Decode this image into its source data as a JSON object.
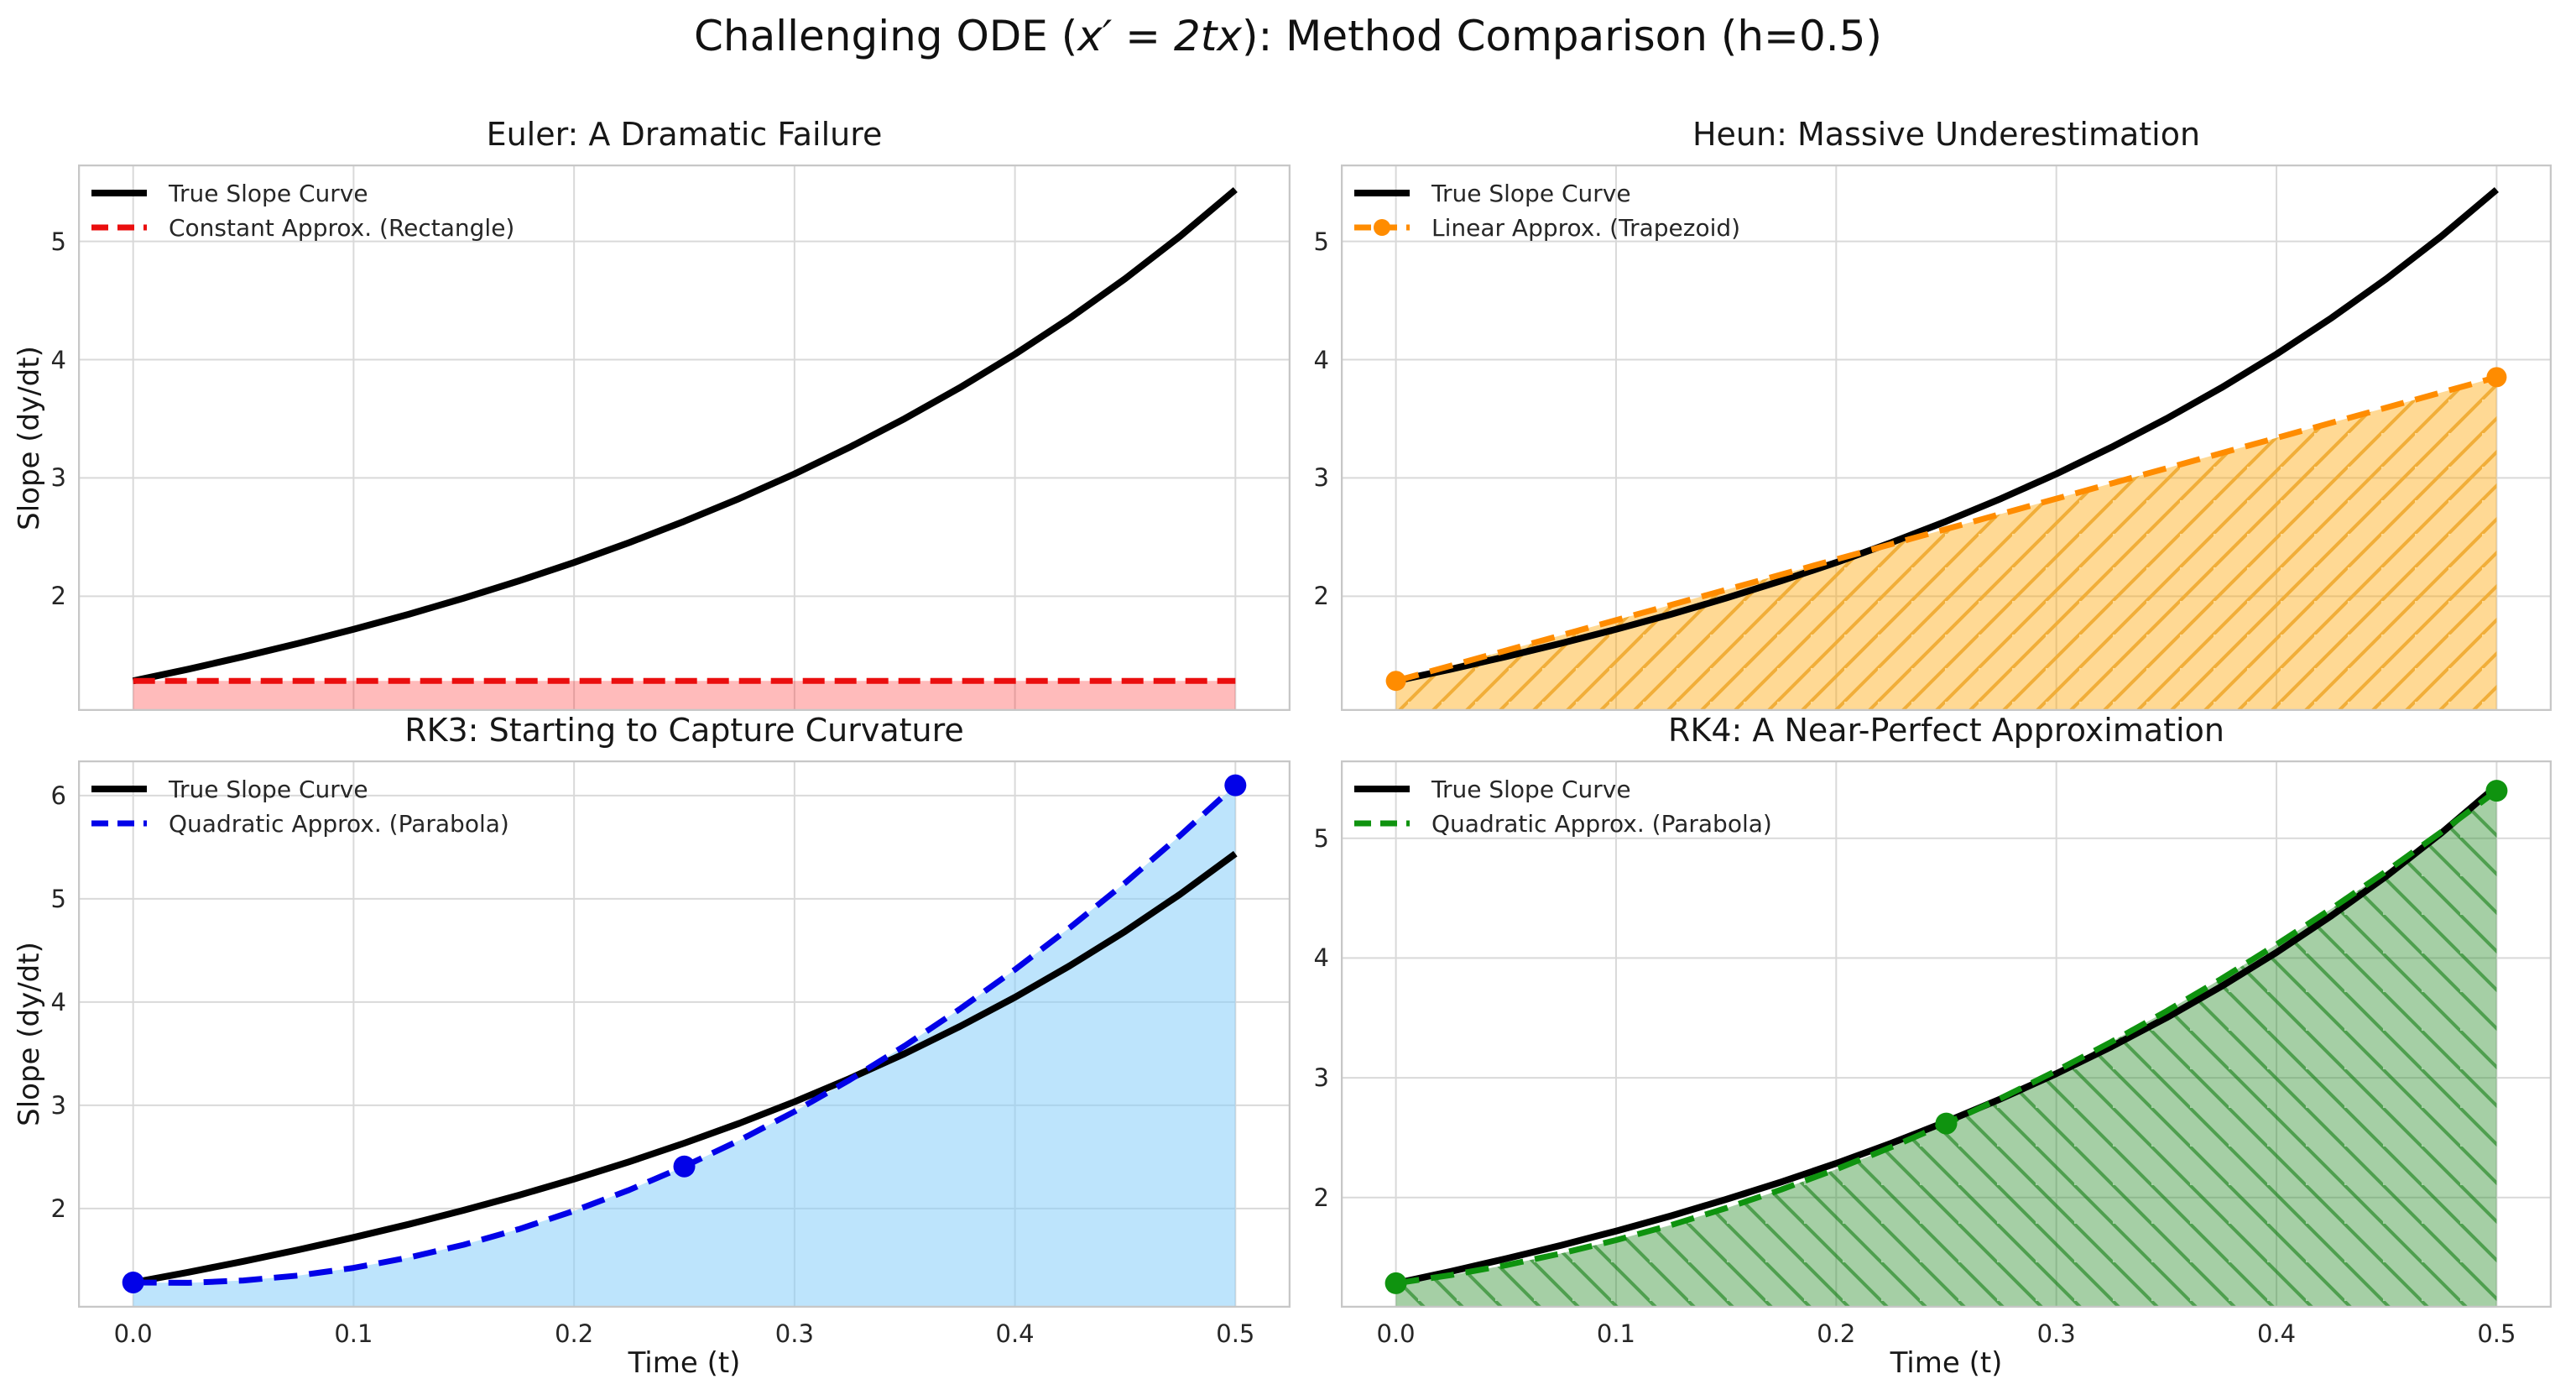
{
  "figure": {
    "title": {
      "prefix": "Challenging ODE (",
      "math": "x′ = 2tx",
      "suffix": "): Method Comparison (h=0.5)",
      "full": "Challenging ODE (x′ = 2tx): Method Comparison (h=0.5)"
    }
  },
  "shared": {
    "xlabel": "Time (t)",
    "ylabel": "Slope (dy/dt)"
  },
  "style": {
    "grid_color": "#d9d9d9",
    "spine_color": "#c7c7c7",
    "background": "#ffffff",
    "true_curve_color": "#000000",
    "euler_color": "#ea0e0e",
    "heun_color": "#ff8c00",
    "rk3_color": "#0202e8",
    "rk4_color": "#0f930f"
  },
  "chart_data": [
    {
      "id": "euler",
      "type": "line",
      "title": "Euler: A Dramatic Failure",
      "xlabel": "",
      "ylabel": "Slope (dy/dt)",
      "xlim": [
        -0.025,
        0.525
      ],
      "ylim": [
        1.03,
        5.65
      ],
      "x_ticks": [
        0,
        0.1,
        0.2,
        0.3,
        0.4,
        0.5
      ],
      "x_tick_labels": [],
      "y_ticks": [
        2,
        3,
        4,
        5
      ],
      "grid": true,
      "legend_position": "upper left",
      "legend": [
        {
          "label": "True Slope Curve",
          "color": "#000000",
          "dash": false,
          "marker": false,
          "line_width": 8
        },
        {
          "label": "Constant Approx. (Rectangle)",
          "color": "#ea0e0e",
          "dash": true,
          "marker": false,
          "line_width": 7
        }
      ],
      "series": [
        {
          "name": "True Slope Curve",
          "color": "#000000",
          "line_style": "solid",
          "line_width": 8,
          "x": [
            0,
            0.025,
            0.05,
            0.075,
            0.1,
            0.125,
            0.15,
            0.175,
            0.2,
            0.225,
            0.25,
            0.275,
            0.3,
            0.325,
            0.35,
            0.375,
            0.4,
            0.425,
            0.45,
            0.475,
            0.5
          ],
          "y": [
            1.284,
            1.383,
            1.489,
            1.601,
            1.72,
            1.847,
            1.984,
            2.129,
            2.285,
            2.453,
            2.633,
            2.826,
            3.034,
            3.259,
            3.501,
            3.763,
            4.046,
            4.353,
            4.685,
            5.045,
            5.437
          ]
        },
        {
          "name": "Constant Approx. (Rectangle)",
          "color": "#ea0e0e",
          "line_style": "dashed",
          "line_width": 7,
          "dash_pattern": "26 12",
          "x": [
            0,
            0.5
          ],
          "y": [
            1.284,
            1.284
          ],
          "fill_color": "rgba(255,30,30,0.30)",
          "fill_hatch": null,
          "markers": []
        }
      ]
    },
    {
      "id": "heun",
      "type": "line",
      "title": "Heun: Massive Underestimation",
      "xlabel": "",
      "ylabel": "",
      "xlim": [
        -0.025,
        0.525
      ],
      "ylim": [
        1.03,
        5.65
      ],
      "x_ticks": [
        0,
        0.1,
        0.2,
        0.3,
        0.4,
        0.5
      ],
      "x_tick_labels": [],
      "y_ticks": [
        2,
        3,
        4,
        5
      ],
      "grid": true,
      "legend_position": "upper left",
      "legend": [
        {
          "label": "True Slope Curve",
          "color": "#000000",
          "dash": false,
          "marker": false,
          "line_width": 8
        },
        {
          "label": "Linear Approx. (Trapezoid)",
          "color": "#ff8c00",
          "dash": true,
          "marker": true,
          "line_width": 7
        }
      ],
      "series": [
        {
          "name": "True Slope Curve",
          "color": "#000000",
          "line_style": "solid",
          "line_width": 8,
          "x": [
            0,
            0.025,
            0.05,
            0.075,
            0.1,
            0.125,
            0.15,
            0.175,
            0.2,
            0.225,
            0.25,
            0.275,
            0.3,
            0.325,
            0.35,
            0.375,
            0.4,
            0.425,
            0.45,
            0.475,
            0.5
          ],
          "y": [
            1.284,
            1.383,
            1.489,
            1.601,
            1.72,
            1.847,
            1.984,
            2.129,
            2.285,
            2.453,
            2.633,
            2.826,
            3.034,
            3.259,
            3.501,
            3.763,
            4.046,
            4.353,
            4.685,
            5.045,
            5.437
          ]
        },
        {
          "name": "Linear Approx. (Trapezoid)",
          "color": "#ff8c00",
          "line_style": "dashed",
          "line_width": 7,
          "dash_pattern": "28 14",
          "x": [
            0,
            0.5
          ],
          "y": [
            1.284,
            3.852
          ],
          "fill_color": "rgba(255,165,0,0.42)",
          "fill_hatch": {
            "direction": "/",
            "color": "rgba(240,172,52,0.95)",
            "spacing": 40,
            "width": 4
          },
          "markers": [
            [
              0,
              1.284
            ],
            [
              0.5,
              3.852
            ]
          ],
          "marker_radius": 12
        }
      ]
    },
    {
      "id": "rk3",
      "type": "line",
      "title": "RK3: Starting to Capture Curvature",
      "xlabel": "Time (t)",
      "ylabel": "Slope (dy/dt)",
      "xlim": [
        -0.025,
        0.525
      ],
      "ylim": [
        1.04,
        6.34
      ],
      "x_ticks": [
        0,
        0.1,
        0.2,
        0.3,
        0.4,
        0.5
      ],
      "x_tick_labels": [
        "0.0",
        "0.1",
        "0.2",
        "0.3",
        "0.4",
        "0.5"
      ],
      "y_ticks": [
        2,
        3,
        4,
        5,
        6
      ],
      "grid": true,
      "legend_position": "upper left",
      "legend": [
        {
          "label": "True Slope Curve",
          "color": "#000000",
          "dash": false,
          "marker": false,
          "line_width": 8
        },
        {
          "label": "Quadratic Approx. (Parabola)",
          "color": "#0202e8",
          "dash": true,
          "marker": false,
          "line_width": 7
        }
      ],
      "series": [
        {
          "name": "True Slope Curve",
          "color": "#000000",
          "line_style": "solid",
          "line_width": 8,
          "x": [
            0,
            0.025,
            0.05,
            0.075,
            0.1,
            0.125,
            0.15,
            0.175,
            0.2,
            0.225,
            0.25,
            0.275,
            0.3,
            0.325,
            0.35,
            0.375,
            0.4,
            0.425,
            0.45,
            0.475,
            0.5
          ],
          "y": [
            1.284,
            1.383,
            1.489,
            1.601,
            1.72,
            1.847,
            1.984,
            2.129,
            2.285,
            2.453,
            2.633,
            2.826,
            3.034,
            3.259,
            3.501,
            3.763,
            4.046,
            4.353,
            4.685,
            5.045,
            5.437
          ]
        },
        {
          "name": "Quadratic Approx. (Parabola)",
          "color": "#0202e8",
          "line_style": "dashed",
          "line_width": 7,
          "dash_pattern": "28 14",
          "x": [
            0,
            0.025,
            0.05,
            0.075,
            0.1,
            0.125,
            0.15,
            0.175,
            0.2,
            0.225,
            0.25,
            0.275,
            0.3,
            0.325,
            0.35,
            0.375,
            0.4,
            0.425,
            0.45,
            0.475,
            0.5
          ],
          "y": [
            1.284,
            1.281,
            1.303,
            1.351,
            1.425,
            1.525,
            1.65,
            1.801,
            1.977,
            2.18,
            2.408,
            2.661,
            2.94,
            3.245,
            3.576,
            3.932,
            4.314,
            4.722,
            5.155,
            5.614,
            6.099
          ],
          "fill_color": "rgba(135,206,250,0.55)",
          "fill_hatch": null,
          "markers": [
            [
              0,
              1.284
            ],
            [
              0.25,
              2.408
            ],
            [
              0.5,
              6.099
            ]
          ],
          "marker_radius": 13
        }
      ]
    },
    {
      "id": "rk4",
      "type": "line",
      "title": "RK4: A Near-Perfect Approximation",
      "xlabel": "Time (t)",
      "ylabel": "",
      "xlim": [
        -0.025,
        0.525
      ],
      "ylim": [
        1.08,
        5.65
      ],
      "x_ticks": [
        0,
        0.1,
        0.2,
        0.3,
        0.4,
        0.5
      ],
      "x_tick_labels": [
        "0.0",
        "0.1",
        "0.2",
        "0.3",
        "0.4",
        "0.5"
      ],
      "y_ticks": [
        2,
        3,
        4,
        5
      ],
      "grid": true,
      "legend_position": "upper left",
      "legend": [
        {
          "label": "True Slope Curve",
          "color": "#000000",
          "dash": false,
          "marker": false,
          "line_width": 8
        },
        {
          "label": "Quadratic Approx. (Parabola)",
          "color": "#0f930f",
          "dash": true,
          "marker": false,
          "line_width": 7
        }
      ],
      "series": [
        {
          "name": "True Slope Curve",
          "color": "#000000",
          "line_style": "solid",
          "line_width": 8,
          "x": [
            0,
            0.025,
            0.05,
            0.075,
            0.1,
            0.125,
            0.15,
            0.175,
            0.2,
            0.225,
            0.25,
            0.275,
            0.3,
            0.325,
            0.35,
            0.375,
            0.4,
            0.425,
            0.45,
            0.475,
            0.5
          ],
          "y": [
            1.284,
            1.383,
            1.489,
            1.601,
            1.72,
            1.847,
            1.984,
            2.129,
            2.285,
            2.453,
            2.633,
            2.826,
            3.034,
            3.259,
            3.501,
            3.763,
            4.046,
            4.353,
            4.685,
            5.045,
            5.437
          ]
        },
        {
          "name": "Quadratic Approx. (Parabola)",
          "color": "#0f930f",
          "line_style": "dashed",
          "line_width": 7,
          "dash_pattern": "28 14",
          "x": [
            0,
            0.025,
            0.05,
            0.075,
            0.1,
            0.125,
            0.15,
            0.175,
            0.2,
            0.225,
            0.25,
            0.275,
            0.3,
            0.325,
            0.35,
            0.375,
            0.4,
            0.425,
            0.45,
            0.475,
            0.5
          ],
          "y": [
            1.284,
            1.352,
            1.435,
            1.533,
            1.644,
            1.77,
            1.911,
            2.066,
            2.236,
            2.42,
            2.618,
            2.831,
            3.058,
            3.3,
            3.556,
            3.827,
            4.112,
            4.412,
            4.726,
            5.054,
            5.397
          ],
          "fill_color": "rgba(40,140,40,0.42)",
          "fill_hatch": {
            "direction": "\\",
            "color": "rgba(10,120,10,0.55)",
            "spacing": 46,
            "width": 4
          },
          "markers": [
            [
              0,
              1.284
            ],
            [
              0.25,
              2.618
            ],
            [
              0.5,
              5.397
            ]
          ],
          "marker_radius": 13
        }
      ]
    }
  ]
}
